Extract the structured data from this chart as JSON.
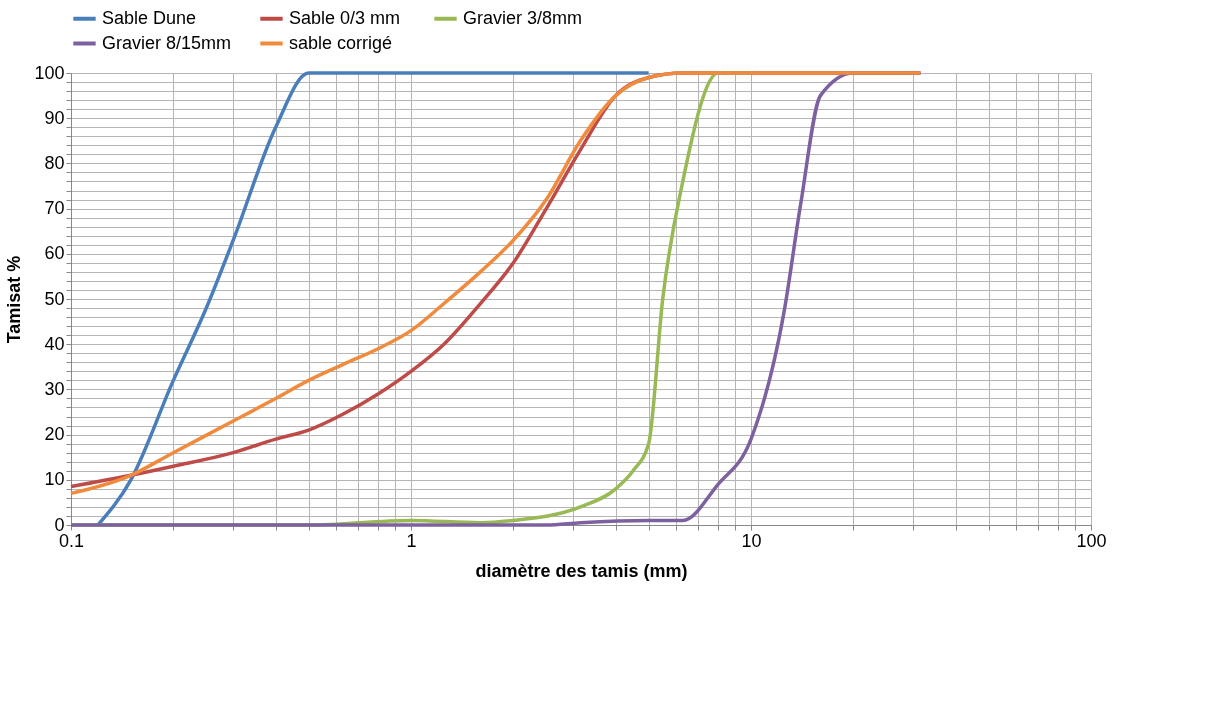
{
  "chart_data": {
    "type": "line",
    "xlabel": "diamètre des tamis (mm)",
    "ylabel": "Tamisat %",
    "log": "x",
    "grid": true,
    "legend": "top",
    "line_style": "solid",
    "marker": "none",
    "xlim": [
      0.1,
      100
    ],
    "ylim": [
      0,
      100
    ],
    "xticks": [
      0.1,
      {
        "value": 0.2,
        "label": null
      },
      {
        "value": 0.3,
        "label": null
      },
      {
        "value": 0.4,
        "label": null
      },
      {
        "value": 0.5,
        "label": null
      },
      {
        "value": 0.6,
        "label": null
      },
      {
        "value": 0.7,
        "label": null
      },
      {
        "value": 0.8,
        "label": null
      },
      {
        "value": 0.9,
        "label": null
      },
      1,
      {
        "value": 2,
        "label": null
      },
      {
        "value": 3,
        "label": null
      },
      {
        "value": 4,
        "label": null
      },
      {
        "value": 5,
        "label": null
      },
      {
        "value": 6,
        "label": null
      },
      {
        "value": 7,
        "label": null
      },
      {
        "value": 8,
        "label": null
      },
      {
        "value": 9,
        "label": null
      },
      10,
      {
        "value": 20,
        "label": null
      },
      {
        "value": 30,
        "label": null
      },
      {
        "value": 40,
        "label": null
      },
      {
        "value": 50,
        "label": null
      },
      {
        "value": 60,
        "label": null
      },
      {
        "value": 70,
        "label": null
      },
      {
        "value": 80,
        "label": null
      },
      {
        "value": 90,
        "label": null
      },
      100
    ],
    "yticks": [
      0,
      {
        "value": 2,
        "label": null
      },
      {
        "value": 4,
        "label": null
      },
      {
        "value": 6,
        "label": null
      },
      {
        "value": 8,
        "label": null
      },
      10,
      {
        "value": 12,
        "label": null
      },
      {
        "value": 14,
        "label": null
      },
      {
        "value": 16,
        "label": null
      },
      {
        "value": 18,
        "label": null
      },
      20,
      {
        "value": 22,
        "label": null
      },
      {
        "value": 24,
        "label": null
      },
      {
        "value": 26,
        "label": null
      },
      {
        "value": 28,
        "label": null
      },
      30,
      {
        "value": 32,
        "label": null
      },
      {
        "value": 34,
        "label": null
      },
      {
        "value": 36,
        "label": null
      },
      {
        "value": 38,
        "label": null
      },
      40,
      {
        "value": 42,
        "label": null
      },
      {
        "value": 44,
        "label": null
      },
      {
        "value": 46,
        "label": null
      },
      {
        "value": 48,
        "label": null
      },
      50,
      {
        "value": 52,
        "label": null
      },
      {
        "value": 54,
        "label": null
      },
      {
        "value": 56,
        "label": null
      },
      {
        "value": 58,
        "label": null
      },
      60,
      {
        "value": 62,
        "label": null
      },
      {
        "value": 64,
        "label": null
      },
      {
        "value": 66,
        "label": null
      },
      {
        "value": 68,
        "label": null
      },
      70,
      {
        "value": 72,
        "label": null
      },
      {
        "value": 74,
        "label": null
      },
      {
        "value": 76,
        "label": null
      },
      {
        "value": 78,
        "label": null
      },
      80,
      {
        "value": 82,
        "label": null
      },
      {
        "value": 84,
        "label": null
      },
      {
        "value": 86,
        "label": null
      },
      {
        "value": 88,
        "label": null
      },
      90,
      {
        "value": 92,
        "label": null
      },
      {
        "value": 94,
        "label": null
      },
      {
        "value": 96,
        "label": null
      },
      {
        "value": 98,
        "label": null
      },
      100
    ],
    "series": [
      {
        "name": "Sable Dune",
        "color": "#4a7ebb",
        "x": [
          0.12,
          0.15,
          0.2,
          0.25,
          0.3,
          0.4,
          0.5,
          1,
          2,
          5
        ],
        "values": [
          0,
          10,
          32,
          48,
          63,
          88,
          100,
          100,
          100,
          100
        ]
      },
      {
        "name": "Sable  0/3 mm",
        "color": "#be4b48",
        "x": [
          0.1,
          0.15,
          0.2,
          0.3,
          0.4,
          0.5,
          0.63,
          0.8,
          1,
          1.25,
          1.6,
          2,
          2.5,
          3.15,
          4,
          5,
          6.3,
          10,
          20,
          31.5
        ],
        "values": [
          8.5,
          11,
          13,
          16,
          19,
          21,
          24.5,
          29,
          34,
          40,
          49,
          58,
          70,
          83,
          95,
          99,
          100,
          100,
          100,
          100
        ]
      },
      {
        "name": "Gravier 3/8mm",
        "color": "#98b954",
        "x": [
          0.1,
          0.5,
          1,
          1.6,
          2,
          3.15,
          4,
          4.5,
          5,
          5.5,
          6.3,
          8,
          10
        ],
        "values": [
          0,
          0,
          1,
          0.5,
          1,
          4,
          8,
          12,
          18,
          50,
          76,
          100,
          100
        ]
      },
      {
        "name": "Gravier 8/15mm",
        "color": "#7d60a0",
        "x": [
          0.1,
          1,
          2.5,
          3.15,
          5,
          6.3,
          8,
          10,
          12.5,
          14,
          16,
          20,
          31.5
        ],
        "values": [
          0,
          0,
          0,
          0.5,
          1,
          1,
          9,
          19,
          47,
          71,
          95,
          100,
          100
        ]
      },
      {
        "name": "sable corrigé",
        "color": "#f08a3c",
        "x": [
          0.1,
          0.15,
          0.2,
          0.3,
          0.4,
          0.5,
          0.63,
          0.8,
          1,
          1.25,
          1.6,
          2,
          2.5,
          3.15,
          4,
          5,
          6.3,
          10,
          20,
          31.5
        ],
        "values": [
          7,
          11,
          16,
          23,
          28,
          32,
          35.5,
          39,
          43,
          49,
          56,
          63,
          72,
          85,
          95,
          99,
          100,
          100,
          100,
          100
        ]
      }
    ]
  }
}
